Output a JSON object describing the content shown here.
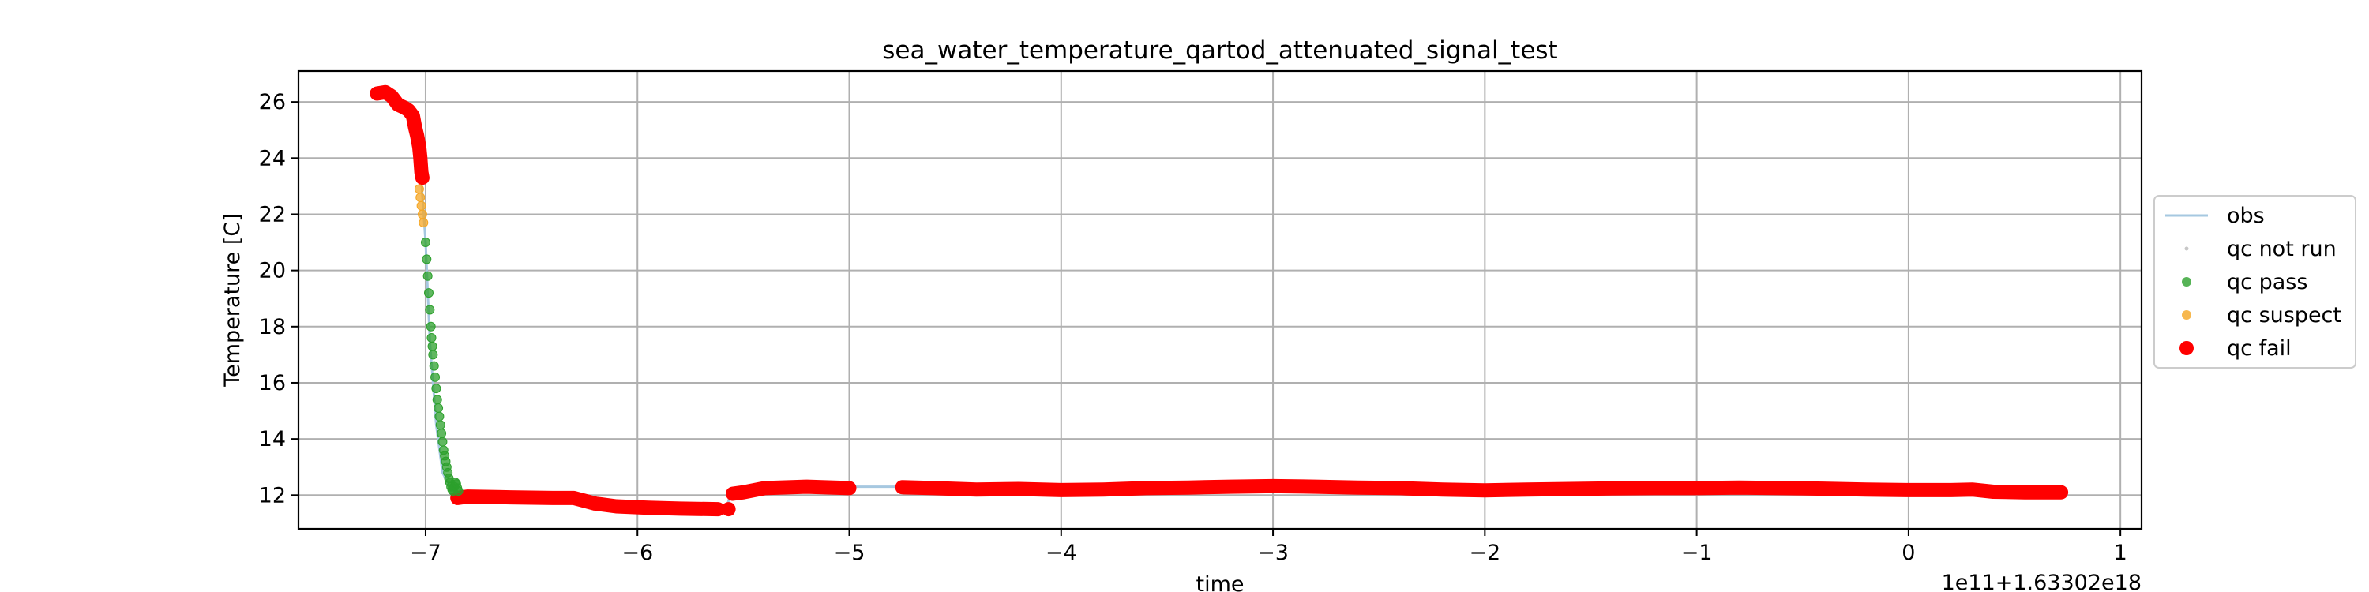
{
  "chart_data": {
    "type": "scatter",
    "title": "sea_water_temperature_qartod_attenuated_signal_test",
    "xlabel": "time",
    "ylabel": "Temperature [C]",
    "x_offset_label": "1e11+1.63302e18",
    "xlim": [
      -7.6,
      1.1
    ],
    "ylim": [
      10.8,
      27.1
    ],
    "xticks": [
      -7,
      -6,
      -5,
      -4,
      -3,
      -2,
      -1,
      0,
      1
    ],
    "xtick_labels": [
      "−7",
      "−6",
      "−5",
      "−4",
      "−3",
      "−2",
      "−1",
      "0",
      "1"
    ],
    "yticks": [
      12,
      14,
      16,
      18,
      20,
      22,
      24,
      26
    ],
    "ytick_labels": [
      "12",
      "14",
      "16",
      "18",
      "20",
      "22",
      "24",
      "26"
    ],
    "grid": true,
    "legend_position": "outside-right",
    "legend": [
      {
        "label": "obs",
        "color": "#a6c8e0",
        "marker": "line"
      },
      {
        "label": "qc not run",
        "color": "#c7c7c7",
        "marker": "tiny-dot"
      },
      {
        "label": "qc pass",
        "color": "#2ca02c",
        "marker": "small-dot"
      },
      {
        "label": "qc suspect",
        "color": "#f5a623",
        "marker": "small-dot"
      },
      {
        "label": "qc fail",
        "color": "#ff0000",
        "marker": "big-dot"
      }
    ],
    "obs_line": [
      [
        -7.22,
        26.3
      ],
      [
        -7.15,
        26.2
      ],
      [
        -7.1,
        25.7
      ],
      [
        -7.05,
        24.8
      ],
      [
        -7.02,
        23.2
      ],
      [
        -7.0,
        21.0
      ],
      [
        -6.98,
        17.5
      ],
      [
        -6.95,
        14.5
      ],
      [
        -6.92,
        12.8
      ],
      [
        -6.88,
        12.2
      ],
      [
        -6.8,
        11.9
      ],
      [
        -6.3,
        11.9
      ],
      [
        -6.1,
        11.6
      ],
      [
        -5.58,
        11.5
      ],
      [
        -5.56,
        12.1
      ],
      [
        -5.4,
        12.3
      ],
      [
        -5.0,
        12.3
      ],
      [
        -4.75,
        12.3
      ],
      [
        -4.0,
        12.2
      ],
      [
        -3.0,
        12.3
      ],
      [
        -2.0,
        12.2
      ],
      [
        -1.0,
        12.25
      ],
      [
        0.0,
        12.2
      ],
      [
        0.72,
        12.1
      ]
    ],
    "series": [
      {
        "name": "qc fail",
        "color": "#ff0000",
        "segments": [
          [
            [
              -7.23,
              26.3
            ],
            [
              -7.19,
              26.35
            ],
            [
              -7.16,
              26.2
            ],
            [
              -7.13,
              25.9
            ],
            [
              -7.1,
              25.8
            ],
            [
              -7.08,
              25.7
            ],
            [
              -7.06,
              25.5
            ],
            [
              -7.05,
              25.1
            ],
            [
              -7.04,
              24.8
            ],
            [
              -7.03,
              24.4
            ],
            [
              -7.025,
              24.0
            ],
            [
              -7.02,
              23.5
            ],
            [
              -7.015,
              23.3
            ]
          ],
          [
            [
              -6.85,
              11.9
            ],
            [
              -6.8,
              11.95
            ],
            [
              -6.6,
              11.92
            ],
            [
              -6.4,
              11.9
            ],
            [
              -6.3,
              11.9
            ],
            [
              -6.2,
              11.7
            ],
            [
              -6.1,
              11.6
            ],
            [
              -5.95,
              11.55
            ],
            [
              -5.8,
              11.52
            ],
            [
              -5.62,
              11.5
            ]
          ],
          [
            [
              -5.57,
              11.5
            ]
          ],
          [
            [
              -5.55,
              12.05
            ],
            [
              -5.5,
              12.1
            ],
            [
              -5.4,
              12.25
            ],
            [
              -5.2,
              12.3
            ],
            [
              -5.0,
              12.25
            ]
          ],
          [
            [
              -4.75,
              12.28
            ],
            [
              -4.6,
              12.25
            ],
            [
              -4.4,
              12.2
            ],
            [
              -4.2,
              12.22
            ],
            [
              -4.0,
              12.18
            ],
            [
              -3.8,
              12.2
            ],
            [
              -3.6,
              12.25
            ],
            [
              -3.4,
              12.27
            ],
            [
              -3.2,
              12.3
            ],
            [
              -3.0,
              12.32
            ],
            [
              -2.8,
              12.3
            ],
            [
              -2.6,
              12.27
            ],
            [
              -2.4,
              12.25
            ],
            [
              -2.2,
              12.2
            ],
            [
              -2.0,
              12.17
            ],
            [
              -1.8,
              12.2
            ],
            [
              -1.6,
              12.22
            ],
            [
              -1.4,
              12.24
            ],
            [
              -1.2,
              12.25
            ],
            [
              -1.0,
              12.25
            ],
            [
              -0.8,
              12.27
            ],
            [
              -0.6,
              12.25
            ],
            [
              -0.4,
              12.23
            ],
            [
              -0.2,
              12.2
            ],
            [
              0.0,
              12.18
            ],
            [
              0.2,
              12.18
            ],
            [
              0.3,
              12.2
            ],
            [
              0.4,
              12.12
            ],
            [
              0.55,
              12.1
            ],
            [
              0.72,
              12.1
            ]
          ]
        ]
      },
      {
        "name": "qc suspect",
        "color": "#f5a623",
        "points": [
          [
            -7.03,
            22.9
          ],
          [
            -7.025,
            22.6
          ],
          [
            -7.02,
            22.3
          ],
          [
            -7.015,
            22.0
          ],
          [
            -7.01,
            21.7
          ]
        ]
      },
      {
        "name": "qc pass",
        "color": "#2ca02c",
        "points": [
          [
            -7.0,
            21.0
          ],
          [
            -6.995,
            20.4
          ],
          [
            -6.99,
            19.8
          ],
          [
            -6.985,
            19.2
          ],
          [
            -6.98,
            18.6
          ],
          [
            -6.975,
            18.0
          ],
          [
            -6.972,
            17.6
          ],
          [
            -6.968,
            17.3
          ],
          [
            -6.965,
            17.0
          ],
          [
            -6.96,
            16.6
          ],
          [
            -6.955,
            16.2
          ],
          [
            -6.95,
            15.8
          ],
          [
            -6.945,
            15.4
          ],
          [
            -6.94,
            15.1
          ],
          [
            -6.935,
            14.8
          ],
          [
            -6.93,
            14.5
          ],
          [
            -6.925,
            14.2
          ],
          [
            -6.92,
            13.9
          ],
          [
            -6.915,
            13.6
          ],
          [
            -6.91,
            13.4
          ],
          [
            -6.905,
            13.2
          ],
          [
            -6.9,
            13.0
          ],
          [
            -6.895,
            12.8
          ],
          [
            -6.89,
            12.6
          ],
          [
            -6.885,
            12.45
          ],
          [
            -6.88,
            12.3
          ],
          [
            -6.875,
            12.2
          ],
          [
            -6.87,
            12.15
          ],
          [
            -6.865,
            12.3
          ],
          [
            -6.86,
            12.45
          ],
          [
            -6.855,
            12.4
          ],
          [
            -6.85,
            12.25
          ],
          [
            -6.845,
            12.15
          ]
        ]
      }
    ]
  }
}
